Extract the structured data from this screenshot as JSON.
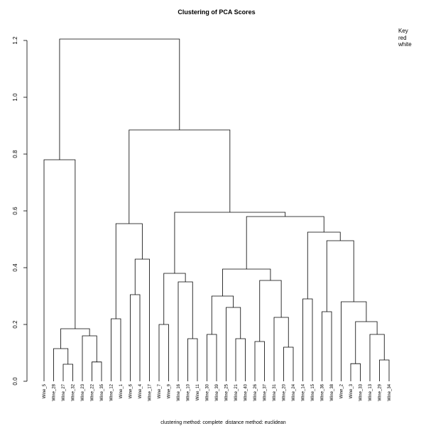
{
  "chart_data": {
    "type": "dendrogram",
    "title": "Clustering of PCA Scores",
    "captions": [
      "clustering method: complete",
      "distance method: euclidean"
    ],
    "ylim": [
      0,
      1.2
    ],
    "yticks": [
      {
        "value": 0,
        "label": "0.0"
      },
      0.2,
      0.4,
      0.6,
      0.8,
      {
        "value": 1,
        "label": "1.0"
      },
      1.2
    ],
    "labels": [
      "Wine_5",
      "Wine_28",
      "Wine_27",
      "Wine_32",
      "Wine_23",
      "Wine_22",
      "Wine_35",
      "Wine_12",
      "Wine_1",
      "Wine_6",
      "Wine_4",
      "Wine_17",
      "Wine_7",
      "Wine_9",
      "Wine_16",
      "Wine_10",
      "Wine_11",
      "Wine_30",
      "Wine_39",
      "Wine_25",
      "Wine_21",
      "Wine_40",
      "Wine_26",
      "Wine_37",
      "Wine_31",
      "Wine_20",
      "Wine_24",
      "Wine_14",
      "Wine_15",
      "Wine_36",
      "Wine_38",
      "Wine_2",
      "Wine_3",
      "Wine_33",
      "Wine_13",
      "Wine_29",
      "Wine_34"
    ],
    "label_groups": [
      "red",
      "red",
      "red",
      "red",
      "red",
      "red",
      "red",
      "white",
      "white",
      "white",
      "white",
      "white",
      "red",
      "red",
      "red",
      "red",
      "red",
      "red",
      "red",
      "red",
      "red",
      "red",
      "red",
      "red",
      "red",
      "red",
      "red",
      "white",
      "red",
      "red",
      "red",
      "red",
      "red",
      "red",
      "red",
      "red",
      "red"
    ],
    "legend": {
      "title": "Key",
      "entries": [
        {
          "name": "red",
          "color": "#ff0000"
        },
        {
          "name": "white",
          "color": "#000000"
        }
      ]
    },
    "merges": [
      {
        "left": -3,
        "right": -4,
        "height": 0.06
      },
      {
        "left": -2,
        "right": 1,
        "height": 0.115
      },
      {
        "left": -6,
        "right": -7,
        "height": 0.068
      },
      {
        "left": -5,
        "right": 3,
        "height": 0.16
      },
      {
        "left": 2,
        "right": 4,
        "height": 0.185
      },
      {
        "left": -1,
        "right": 5,
        "height": 0.78
      },
      {
        "left": -8,
        "right": -9,
        "height": 0.22
      },
      {
        "left": -10,
        "right": -11,
        "height": 0.305
      },
      {
        "left": 8,
        "right": -12,
        "height": 0.43
      },
      {
        "left": 7,
        "right": 9,
        "height": 0.555
      },
      {
        "left": -13,
        "right": -14,
        "height": 0.2
      },
      {
        "left": -16,
        "right": -17,
        "height": 0.15
      },
      {
        "left": -15,
        "right": 12,
        "height": 0.35
      },
      {
        "left": 11,
        "right": 13,
        "height": 0.38
      },
      {
        "left": -18,
        "right": -19,
        "height": 0.165
      },
      {
        "left": -21,
        "right": -22,
        "height": 0.15
      },
      {
        "left": -20,
        "right": 16,
        "height": 0.26
      },
      {
        "left": 15,
        "right": 17,
        "height": 0.3
      },
      {
        "left": -23,
        "right": -24,
        "height": 0.14
      },
      {
        "left": -26,
        "right": -27,
        "height": 0.12
      },
      {
        "left": -25,
        "right": 20,
        "height": 0.225
      },
      {
        "left": 19,
        "right": 21,
        "height": 0.355
      },
      {
        "left": 18,
        "right": 22,
        "height": 0.395
      },
      {
        "left": -28,
        "right": -29,
        "height": 0.29
      },
      {
        "left": -30,
        "right": -31,
        "height": 0.245
      },
      {
        "left": -33,
        "right": -34,
        "height": 0.062
      },
      {
        "left": -36,
        "right": -37,
        "height": 0.075
      },
      {
        "left": -35,
        "right": 27,
        "height": 0.165
      },
      {
        "left": 26,
        "right": 28,
        "height": 0.21
      },
      {
        "left": -32,
        "right": 29,
        "height": 0.28
      },
      {
        "left": 25,
        "right": 30,
        "height": 0.495
      },
      {
        "left": 24,
        "right": 31,
        "height": 0.525
      },
      {
        "left": 23,
        "right": 32,
        "height": 0.58
      },
      {
        "left": 14,
        "right": 33,
        "height": 0.595
      },
      {
        "left": 10,
        "right": 34,
        "height": 0.885
      },
      {
        "left": 6,
        "right": 35,
        "height": 1.205
      }
    ]
  }
}
